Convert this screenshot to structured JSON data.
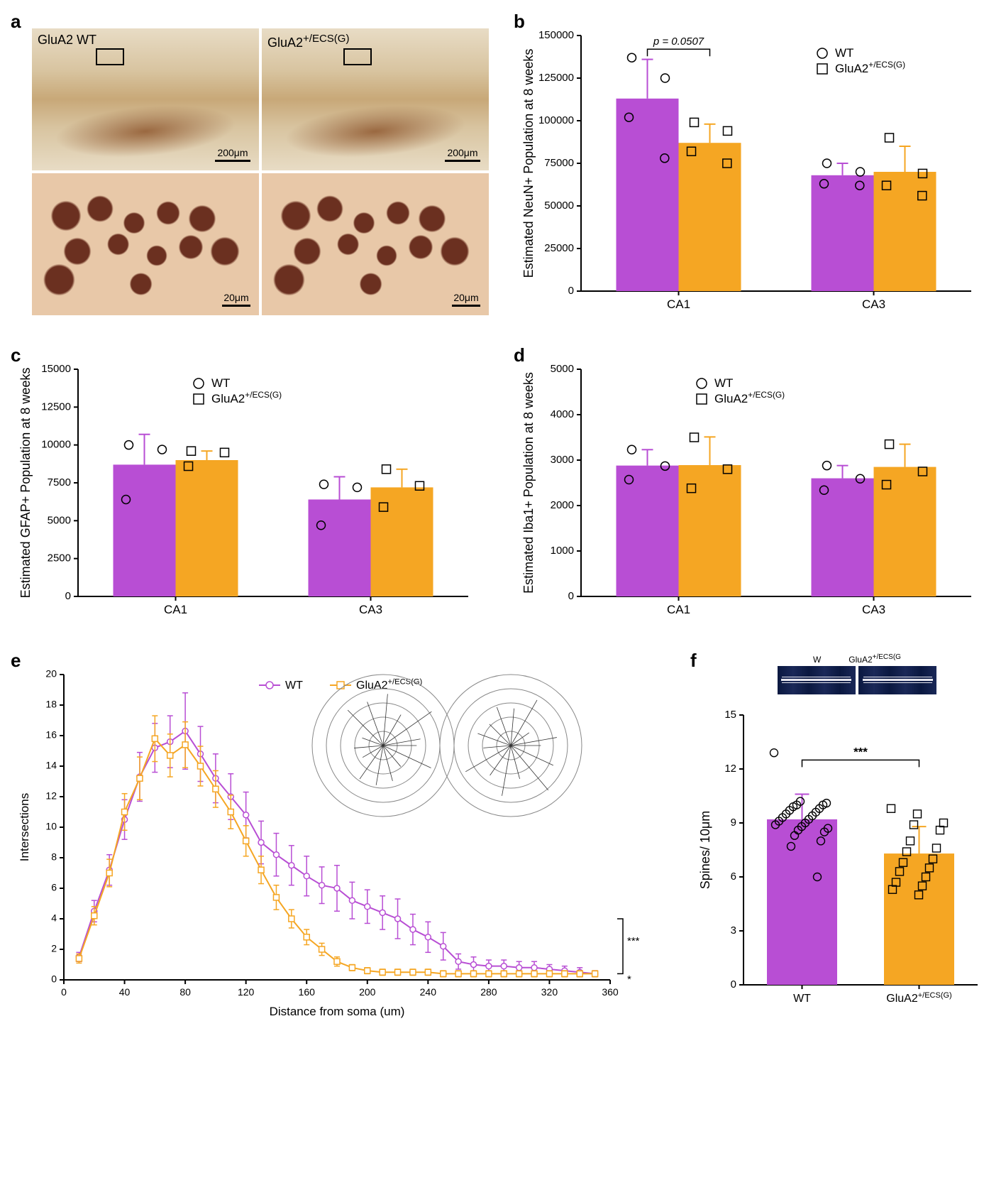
{
  "colors": {
    "wt": "#b84ed4",
    "glua2": "#f5a623",
    "axis": "#000000",
    "grid": "#cccccc",
    "text": "#000000"
  },
  "fonts": {
    "panel_label": 26,
    "axis_label": 18,
    "tick": 15,
    "legend": 16
  },
  "panel_a": {
    "label": "a",
    "top_left_label": "GluA2 WT",
    "top_right_label": "GluA2+/ECS(G)",
    "scale_top": "200μm",
    "scale_bottom": "20μm"
  },
  "panel_b": {
    "label": "b",
    "type": "grouped-bar",
    "ylabel": "Estimated NeuN+ Population at 8 weeks",
    "ylim": [
      0,
      150000
    ],
    "ytick_step": 25000,
    "categories": [
      "CA1",
      "CA3"
    ],
    "legend": {
      "wt": "WT",
      "glua2": "GluA2+/ECS(G)"
    },
    "pvalue": "p = 0.0507",
    "bars": {
      "CA1": {
        "wt": {
          "mean": 113000,
          "err": 23000,
          "pts": [
            137000,
            125000,
            102000,
            78000
          ]
        },
        "glua2": {
          "mean": 87000,
          "err": 11000,
          "pts": [
            99000,
            94000,
            82000,
            75000
          ]
        }
      },
      "CA3": {
        "wt": {
          "mean": 68000,
          "err": 7000,
          "pts": [
            75000,
            70000,
            63000,
            62000
          ]
        },
        "glua2": {
          "mean": 70000,
          "err": 15000,
          "pts": [
            90000,
            69000,
            62000,
            56000
          ]
        }
      }
    },
    "bar_width": 0.32
  },
  "panel_c": {
    "label": "c",
    "type": "grouped-bar",
    "ylabel": "Estimated GFAP+ Population at 8 weeks",
    "ylim": [
      0,
      15000
    ],
    "ytick_step": 2500,
    "categories": [
      "CA1",
      "CA3"
    ],
    "legend": {
      "wt": "WT",
      "glua2": "GluA2+/ECS(G)"
    },
    "bars": {
      "CA1": {
        "wt": {
          "mean": 8700,
          "err": 2000,
          "pts": [
            10000,
            9700,
            6400
          ]
        },
        "glua2": {
          "mean": 9000,
          "err": 600,
          "pts": [
            9600,
            9500,
            8600
          ]
        }
      },
      "CA3": {
        "wt": {
          "mean": 6400,
          "err": 1500,
          "pts": [
            7400,
            7200,
            4700
          ]
        },
        "glua2": {
          "mean": 7200,
          "err": 1200,
          "pts": [
            8400,
            7300,
            5900
          ]
        }
      }
    },
    "bar_width": 0.32
  },
  "panel_d": {
    "label": "d",
    "type": "grouped-bar",
    "ylabel": "Estimated Iba1+ Population at 8 weeks",
    "ylim": [
      0,
      5000
    ],
    "ytick_step": 1000,
    "categories": [
      "CA1",
      "CA3"
    ],
    "legend": {
      "wt": "WT",
      "glua2": "GluA2+/ECS(G)"
    },
    "bars": {
      "CA1": {
        "wt": {
          "mean": 2880,
          "err": 350,
          "pts": [
            3230,
            2870,
            2570
          ]
        },
        "glua2": {
          "mean": 2890,
          "err": 620,
          "pts": [
            3500,
            2800,
            2380
          ]
        }
      },
      "CA3": {
        "wt": {
          "mean": 2600,
          "err": 280,
          "pts": [
            2880,
            2590,
            2340
          ]
        },
        "glua2": {
          "mean": 2850,
          "err": 500,
          "pts": [
            3350,
            2750,
            2460
          ]
        }
      }
    },
    "bar_width": 0.32
  },
  "panel_e": {
    "label": "e",
    "type": "line-sholl",
    "ylabel": "Intersections",
    "xlabel": "Distance from soma (um)",
    "ylim": [
      0,
      20
    ],
    "ytick_step": 2,
    "xlim": [
      0,
      360
    ],
    "xtick_step": 40,
    "legend": {
      "wt": "WT",
      "glua2": "GluA2+/ECS(G)"
    },
    "sig": {
      "distance": "***",
      "distance_geno": "*"
    },
    "series": {
      "wt": {
        "x": [
          10,
          20,
          30,
          40,
          50,
          60,
          70,
          80,
          90,
          100,
          110,
          120,
          130,
          140,
          150,
          160,
          170,
          180,
          190,
          200,
          210,
          220,
          230,
          240,
          250,
          260,
          270,
          280,
          290,
          300,
          310,
          320,
          330,
          340,
          350
        ],
        "y": [
          1.5,
          4.5,
          7.2,
          10.5,
          13.3,
          15.2,
          15.6,
          16.3,
          14.8,
          13.2,
          12.0,
          10.8,
          9.0,
          8.2,
          7.5,
          6.8,
          6.2,
          6.0,
          5.2,
          4.8,
          4.4,
          4.0,
          3.3,
          2.8,
          2.2,
          1.2,
          1.0,
          0.9,
          0.9,
          0.8,
          0.8,
          0.7,
          0.6,
          0.5,
          0.4
        ],
        "err": [
          0.3,
          0.7,
          1.0,
          1.3,
          1.6,
          1.6,
          1.7,
          2.5,
          1.8,
          1.6,
          1.5,
          1.5,
          1.4,
          1.4,
          1.3,
          1.3,
          1.2,
          1.5,
          1.2,
          1.1,
          1.1,
          1.3,
          1.0,
          1.0,
          0.9,
          0.5,
          0.5,
          0.4,
          0.4,
          0.4,
          0.4,
          0.3,
          0.3,
          0.3,
          0.2
        ]
      },
      "glua2": {
        "x": [
          10,
          20,
          30,
          40,
          50,
          60,
          70,
          80,
          90,
          100,
          110,
          120,
          130,
          140,
          150,
          160,
          170,
          180,
          190,
          200,
          210,
          220,
          230,
          240,
          250,
          260,
          270,
          280,
          290,
          300,
          310,
          320,
          330,
          340,
          350
        ],
        "y": [
          1.4,
          4.2,
          7.0,
          11.0,
          13.2,
          15.8,
          14.7,
          15.4,
          14.0,
          12.5,
          11.0,
          9.1,
          7.2,
          5.4,
          4.0,
          2.8,
          2.0,
          1.2,
          0.8,
          0.6,
          0.5,
          0.5,
          0.5,
          0.5,
          0.4,
          0.4,
          0.4,
          0.4,
          0.4,
          0.4,
          0.4,
          0.4,
          0.4,
          0.4,
          0.4
        ],
        "err": [
          0.3,
          0.6,
          0.9,
          1.2,
          1.4,
          1.5,
          1.4,
          1.5,
          1.3,
          1.2,
          1.1,
          1.0,
          0.9,
          0.8,
          0.6,
          0.5,
          0.4,
          0.3,
          0.2,
          0.2,
          0.2,
          0.2,
          0.2,
          0.2,
          0.2,
          0.2,
          0.2,
          0.2,
          0.2,
          0.2,
          0.2,
          0.2,
          0.2,
          0.2,
          0.2
        ]
      }
    }
  },
  "panel_f": {
    "label": "f",
    "type": "bar",
    "ylabel": "Spines/ 10μm",
    "ylim": [
      0,
      15
    ],
    "ytick_step": 3,
    "categories": [
      "WT",
      "GluA2+/ECS(G)"
    ],
    "sig": "***",
    "img_labels": {
      "wt": "W",
      "glua2": "GluA2+/ECS(G)"
    },
    "bars": {
      "WT": {
        "mean": 9.2,
        "err": 1.4,
        "color": "#b84ed4",
        "pts": [
          12.9,
          10.2,
          10.1,
          10.0,
          10.0,
          9.9,
          9.8,
          9.7,
          9.6,
          9.5,
          9.4,
          9.3,
          9.2,
          9.1,
          9.0,
          8.9,
          8.8,
          8.7,
          8.6,
          8.5,
          8.3,
          8.0,
          7.7,
          6.0
        ]
      },
      "GluA2+/ECS(G)": {
        "mean": 7.3,
        "err": 1.5,
        "color": "#f5a623",
        "pts": [
          9.8,
          9.5,
          9.0,
          8.9,
          8.6,
          8.0,
          7.6,
          7.4,
          7.0,
          6.8,
          6.5,
          6.3,
          6.0,
          5.7,
          5.5,
          5.3,
          5.0
        ]
      }
    }
  }
}
